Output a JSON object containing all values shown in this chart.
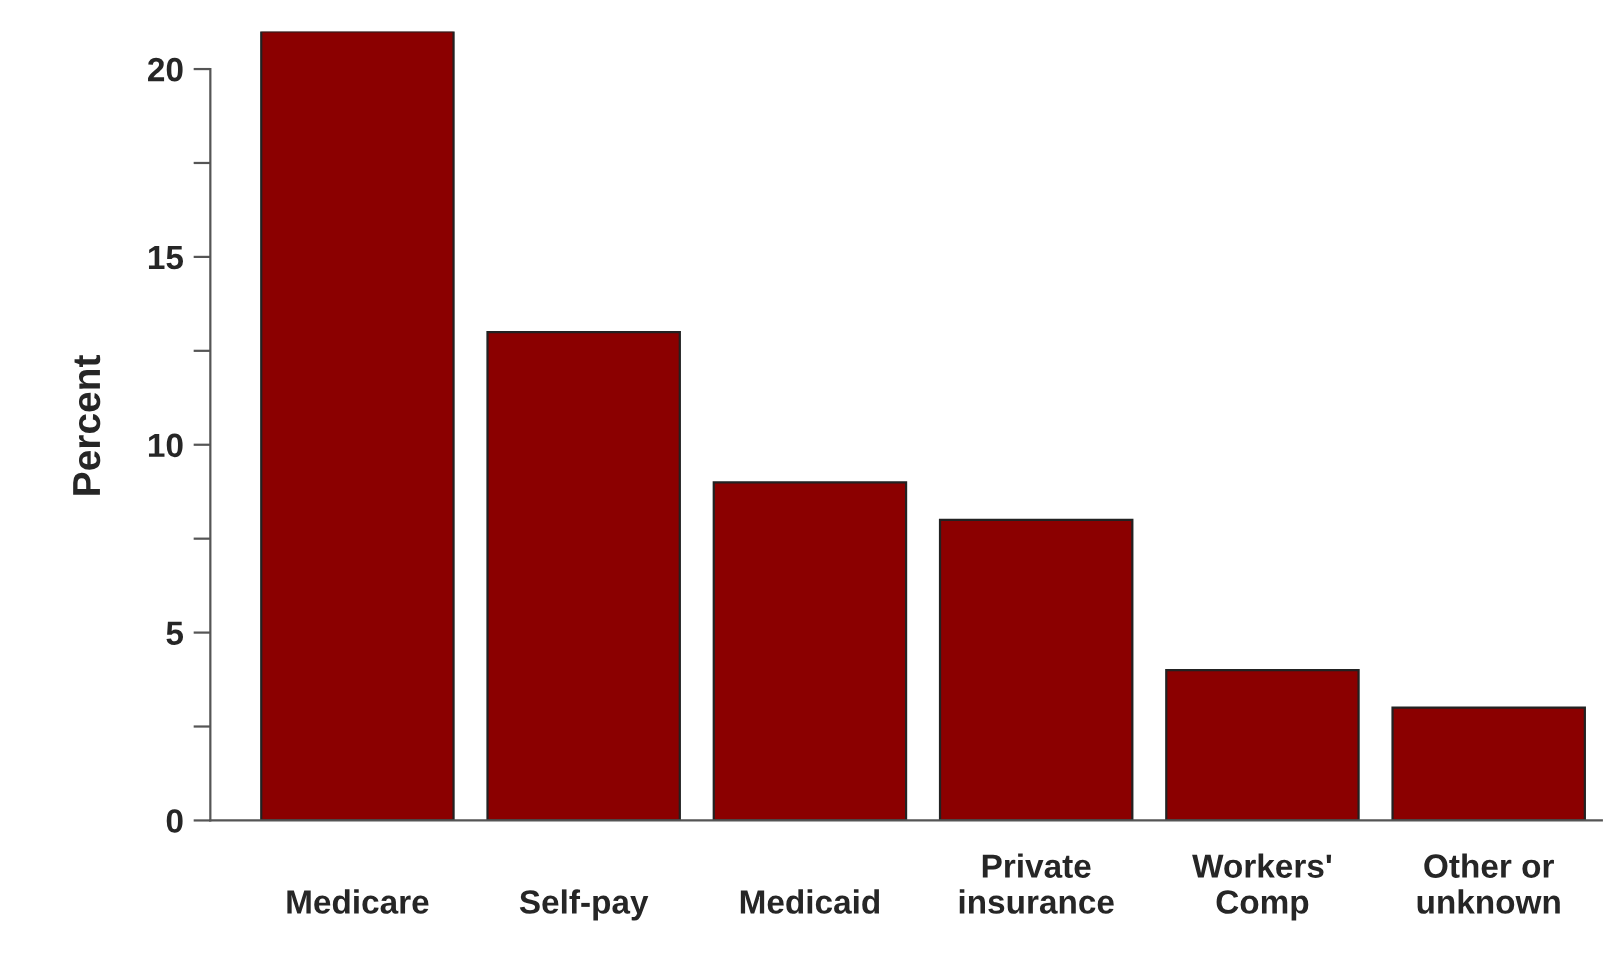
{
  "chart_data": {
    "type": "bar",
    "ylabel": "Percent",
    "categories": [
      "Medicare",
      "Self-pay",
      "Medicaid",
      "Private\ninsurance",
      "Workers'\nComp",
      "Other or\nunknown"
    ],
    "values": [
      21,
      13,
      9,
      8,
      4,
      3
    ],
    "color": "#8b0000",
    "ylim": [
      0,
      21
    ],
    "yticks": [
      0,
      {
        "value": 2.5,
        "label": null
      },
      5,
      {
        "value": 7.5,
        "label": null
      },
      10,
      {
        "value": 12.5,
        "label": null
      },
      15,
      {
        "value": 17.5,
        "label": null
      },
      20
    ],
    "grid": false
  }
}
